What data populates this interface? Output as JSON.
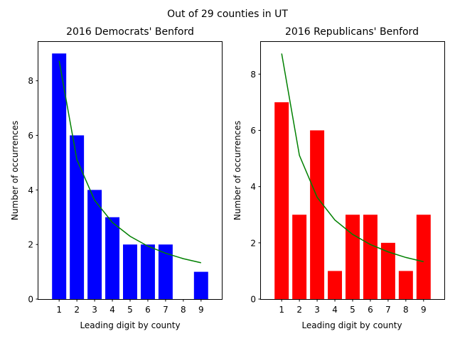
{
  "suptitle": "Out of 29 counties in UT",
  "chart_data": [
    {
      "type": "bar",
      "title": "2016 Democrats' Benford",
      "xlabel": "Leading digit by county",
      "ylabel": "Number of occurrences",
      "categories": [
        "1",
        "2",
        "3",
        "4",
        "5",
        "6",
        "7",
        "8",
        "9"
      ],
      "values": [
        9,
        6,
        4,
        3,
        2,
        2,
        2,
        0,
        1
      ],
      "bar_color": "#0000ff",
      "line": {
        "color": "#008000",
        "values": [
          8.73,
          5.11,
          3.62,
          2.81,
          2.3,
          1.94,
          1.68,
          1.48,
          1.33
        ]
      },
      "ylim": [
        0,
        9.45
      ],
      "yticks": [
        0,
        2,
        4,
        6,
        8
      ],
      "grid": false
    },
    {
      "type": "bar",
      "title": "2016 Republicans' Benford",
      "xlabel": "Leading digit by county",
      "ylabel": "Number of occurrences",
      "categories": [
        "1",
        "2",
        "3",
        "4",
        "5",
        "6",
        "7",
        "8",
        "9"
      ],
      "values": [
        7,
        3,
        6,
        1,
        3,
        3,
        2,
        1,
        3
      ],
      "bar_color": "#ff0000",
      "line": {
        "color": "#008000",
        "values": [
          8.73,
          5.11,
          3.62,
          2.81,
          2.3,
          1.94,
          1.68,
          1.48,
          1.33
        ]
      },
      "ylim": [
        0,
        9.17
      ],
      "yticks": [
        0,
        2,
        4,
        6,
        8
      ],
      "grid": false
    }
  ]
}
